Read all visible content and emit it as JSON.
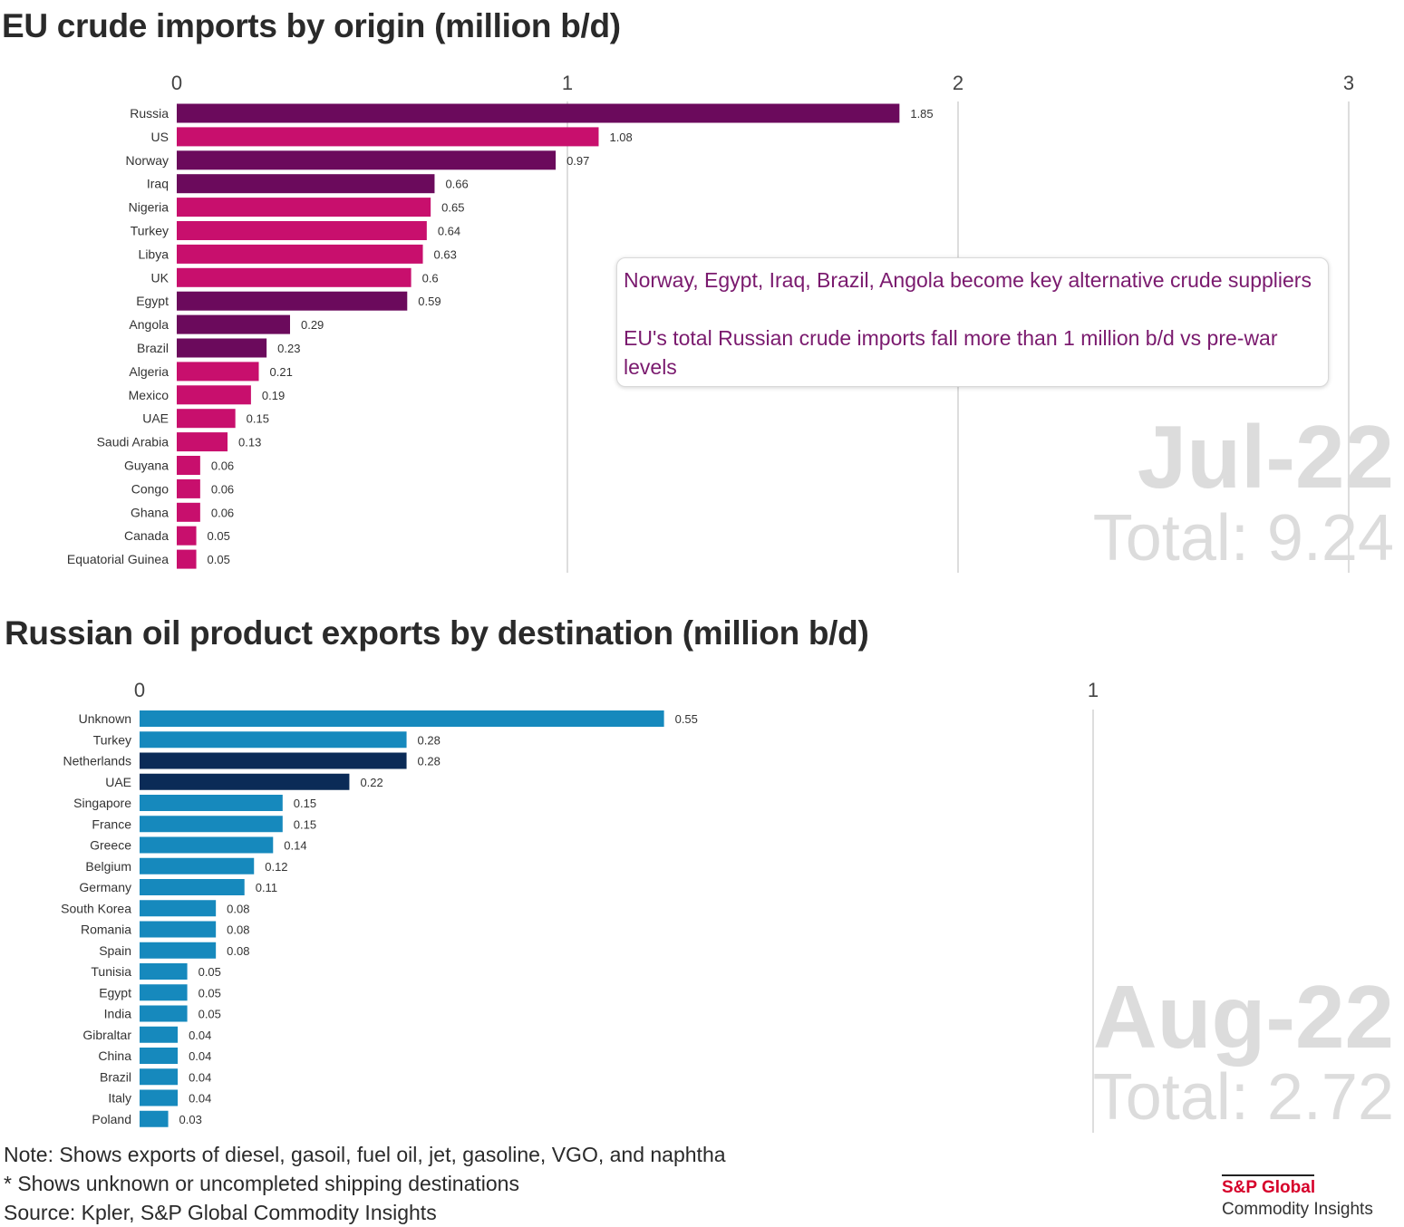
{
  "chart_data": [
    {
      "type": "bar",
      "orientation": "horizontal",
      "title": "EU crude imports by origin (million b/d)",
      "xlim": [
        0,
        3
      ],
      "ticks": [
        "0",
        "1",
        "2",
        "3"
      ],
      "grid": true,
      "categories": [
        "Russia",
        "US",
        "Norway",
        "Iraq",
        "Nigeria",
        "Turkey",
        "Libya",
        "UK",
        "Egypt",
        "Angola",
        "Brazil",
        "Algeria",
        "Mexico",
        "UAE",
        "Saudi Arabia",
        "Guyana",
        "Congo",
        "Ghana",
        "Canada",
        "Equatorial Guinea"
      ],
      "values": [
        1.85,
        1.08,
        0.97,
        0.66,
        0.65,
        0.64,
        0.63,
        0.6,
        0.59,
        0.29,
        0.23,
        0.21,
        0.19,
        0.15,
        0.13,
        0.06,
        0.06,
        0.06,
        0.05,
        0.05
      ],
      "value_labels": [
        "1.85",
        "1.08",
        "0.97",
        "0.66",
        "0.65",
        "0.64",
        "0.63",
        "0.6",
        "0.59",
        "0.29",
        "0.23",
        "0.21",
        "0.19",
        "0.15",
        "0.13",
        "0.06",
        "0.06",
        "0.06",
        "0.05",
        "0.05"
      ],
      "highlighted": [
        "Russia",
        "Norway",
        "Iraq",
        "Egypt",
        "Angola",
        "Brazil"
      ],
      "colors": {
        "highlight": "#6b0a5c",
        "default": "#c80f6d"
      },
      "period": "Jul-22",
      "total": "Total: 9.24",
      "annotation": {
        "line1": "Norway, Egypt, Iraq, Brazil, Angola become key alternative crude suppliers",
        "line2": "EU's total Russian crude imports fall more than 1 million b/d vs pre-war levels"
      }
    },
    {
      "type": "bar",
      "orientation": "horizontal",
      "title": "Russian oil product exports by destination (million b/d)",
      "xlim": [
        0,
        1
      ],
      "ticks": [
        "0",
        "1"
      ],
      "grid": true,
      "categories": [
        "Unknown",
        "Turkey",
        "Netherlands",
        "UAE",
        "Singapore",
        "France",
        "Greece",
        "Belgium",
        "Germany",
        "South Korea",
        "Romania",
        "Spain",
        "Tunisia",
        "Egypt",
        "India",
        "Gibraltar",
        "China",
        "Brazil",
        "Italy",
        "Poland"
      ],
      "values": [
        0.55,
        0.28,
        0.28,
        0.22,
        0.15,
        0.15,
        0.14,
        0.12,
        0.11,
        0.08,
        0.08,
        0.08,
        0.05,
        0.05,
        0.05,
        0.04,
        0.04,
        0.04,
        0.04,
        0.03
      ],
      "value_labels": [
        "0.55",
        "0.28",
        "0.28",
        "0.22",
        "0.15",
        "0.15",
        "0.14",
        "0.12",
        "0.11",
        "0.08",
        "0.08",
        "0.08",
        "0.05",
        "0.05",
        "0.05",
        "0.04",
        "0.04",
        "0.04",
        "0.04",
        "0.03"
      ],
      "highlighted": [
        "Netherlands",
        "UAE"
      ],
      "colors": {
        "highlight": "#0b2b57",
        "default": "#1689bd"
      },
      "period": "Aug-22",
      "total": "Total: 2.72"
    }
  ],
  "footer": {
    "note": "Note: Shows exports of diesel, gasoil, fuel oil, jet, gasoline, VGO, and naphtha",
    "asterisk": "* Shows unknown or uncompleted shipping destinations",
    "source": "Source: Kpler, S&P Global Commodity Insights"
  },
  "brand": {
    "name": "S&P Global",
    "sub": "Commodity Insights"
  }
}
